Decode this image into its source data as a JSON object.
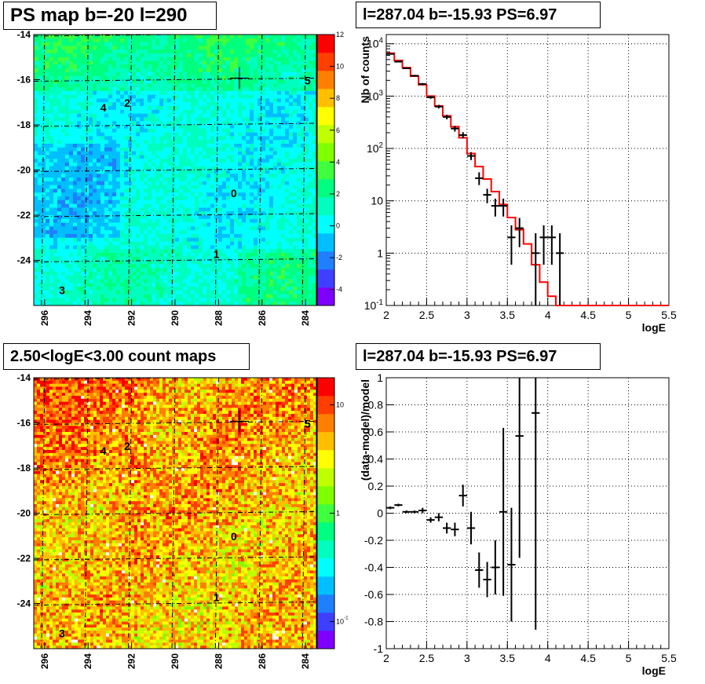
{
  "panels": {
    "ps_map_title": "PS map b=-20 l=290",
    "count_map_title": "2.50<logE<3.00 count maps",
    "spectrum_title": "l=287.04 b=-15.93 PS=6.97",
    "residual_title": "l=287.04 b=-15.93 PS=6.97"
  },
  "chart_data": [
    {
      "type": "heatmap",
      "name": "ps-map",
      "title": "PS map b=-20 l=290",
      "xlim": [
        296.5,
        283.5
      ],
      "ylim": [
        -14,
        -26
      ],
      "x_ticks": [
        "296",
        "294",
        "292",
        "290",
        "288",
        "286",
        "284"
      ],
      "y_ticks": [
        "-14",
        "-16",
        "-18",
        "-20",
        "-22",
        "-24"
      ],
      "colorbar_ticks": [
        "-4",
        "-2",
        "0",
        "2",
        "4",
        "6",
        "8",
        "10",
        "12"
      ],
      "colorbar_range": [
        -5,
        12
      ],
      "colors": [
        "#7f00ff",
        "#3f3fff",
        "#1f7fff",
        "#00bfff",
        "#00ffff",
        "#00ffbf",
        "#00ff7f",
        "#3fff3f",
        "#7fff00",
        "#bfff00",
        "#ffff00",
        "#ffbf00",
        "#ff7f00",
        "#ff3f00",
        "#ff0000"
      ],
      "sources": [
        {
          "label": "0",
          "l": 287.3,
          "b": -21.2
        },
        {
          "label": "1",
          "l": 288.1,
          "b": -23.9
        },
        {
          "label": "2",
          "l": 292.2,
          "b": -17.2
        },
        {
          "label": "3",
          "l": 295.2,
          "b": -25.5
        },
        {
          "label": "4",
          "l": 293.3,
          "b": -17.4
        },
        {
          "label": "5",
          "l": 283.9,
          "b": -16.2
        }
      ],
      "marker": {
        "l": 287.04,
        "b": -15.93
      }
    },
    {
      "type": "heatmap",
      "name": "count-map",
      "title": "2.50<logE<3.00 count maps",
      "xlim": [
        296.5,
        283.5
      ],
      "ylim": [
        -14,
        -26
      ],
      "x_ticks": [
        "296",
        "294",
        "292",
        "290",
        "288",
        "286",
        "284"
      ],
      "y_ticks": [
        "-14",
        "-16",
        "-18",
        "-20",
        "-22",
        "-24"
      ],
      "colorbar_ticks": [
        "10",
        "1",
        "10^-1"
      ],
      "colorbar_scale": "log",
      "colors": [
        "#7f00ff",
        "#3f3fff",
        "#1f7fff",
        "#00bfff",
        "#00ffff",
        "#00ffbf",
        "#00ff7f",
        "#3fff3f",
        "#7fff00",
        "#bfff00",
        "#ffff00",
        "#ffbf00",
        "#ff7f00",
        "#ff3f00",
        "#ff0000"
      ],
      "sources": [
        {
          "label": "0",
          "l": 287.3,
          "b": -21.2
        },
        {
          "label": "1",
          "l": 288.1,
          "b": -23.9
        },
        {
          "label": "2",
          "l": 292.2,
          "b": -17.2
        },
        {
          "label": "3",
          "l": 295.2,
          "b": -25.5
        },
        {
          "label": "4",
          "l": 293.3,
          "b": -17.4
        },
        {
          "label": "5",
          "l": 283.9,
          "b": -16.2
        }
      ],
      "marker": {
        "l": 287.04,
        "b": -15.93
      }
    },
    {
      "type": "line",
      "name": "spectrum",
      "title": "l=287.04 b=-15.93 PS=6.97",
      "xlabel": "logE",
      "ylabel": "Nb of counts",
      "xlim": [
        2,
        5.5
      ],
      "ylim": [
        0.1,
        15000
      ],
      "yscale": "log",
      "grid": true,
      "x_ticks": [
        "2",
        "2.5",
        "3",
        "3.5",
        "4",
        "4.5",
        "5",
        "5.5"
      ],
      "y_ticks": [
        "10^-1",
        "1",
        "10",
        "10^2",
        "10^3",
        "10^4"
      ],
      "model": [
        {
          "x0": 2.0,
          "x1": 2.1,
          "y": 6600
        },
        {
          "x0": 2.1,
          "x1": 2.2,
          "y": 4800
        },
        {
          "x0": 2.2,
          "x1": 2.3,
          "y": 3500
        },
        {
          "x0": 2.3,
          "x1": 2.4,
          "y": 2400
        },
        {
          "x0": 2.4,
          "x1": 2.5,
          "y": 1650
        },
        {
          "x0": 2.5,
          "x1": 2.6,
          "y": 1000
        },
        {
          "x0": 2.6,
          "x1": 2.7,
          "y": 650
        },
        {
          "x0": 2.7,
          "x1": 2.8,
          "y": 420
        },
        {
          "x0": 2.8,
          "x1": 2.9,
          "y": 260
        },
        {
          "x0": 2.9,
          "x1": 3.0,
          "y": 160
        },
        {
          "x0": 3.0,
          "x1": 3.1,
          "y": 80
        },
        {
          "x0": 3.1,
          "x1": 3.2,
          "y": 45
        },
        {
          "x0": 3.2,
          "x1": 3.3,
          "y": 26
        },
        {
          "x0": 3.3,
          "x1": 3.4,
          "y": 15
        },
        {
          "x0": 3.4,
          "x1": 3.5,
          "y": 8.5
        },
        {
          "x0": 3.5,
          "x1": 3.6,
          "y": 4.8
        },
        {
          "x0": 3.6,
          "x1": 3.7,
          "y": 2.8
        },
        {
          "x0": 3.7,
          "x1": 3.8,
          "y": 1.5
        },
        {
          "x0": 3.8,
          "x1": 3.9,
          "y": 0.6
        },
        {
          "x0": 3.9,
          "x1": 4.0,
          "y": 0.28
        },
        {
          "x0": 4.0,
          "x1": 4.1,
          "y": 0.15
        },
        {
          "x0": 4.1,
          "x1": 5.5,
          "y": 0.1
        }
      ],
      "data_points": [
        {
          "x": 2.05,
          "y": 6400,
          "lo": 6250,
          "hi": 6560
        },
        {
          "x": 2.15,
          "y": 4550,
          "lo": 4420,
          "hi": 4690
        },
        {
          "x": 2.25,
          "y": 3400,
          "lo": 3290,
          "hi": 3520
        },
        {
          "x": 2.35,
          "y": 2450,
          "lo": 2350,
          "hi": 2550
        },
        {
          "x": 2.45,
          "y": 1700,
          "lo": 1620,
          "hi": 1780
        },
        {
          "x": 2.55,
          "y": 950,
          "lo": 890,
          "hi": 1010
        },
        {
          "x": 2.65,
          "y": 630,
          "lo": 580,
          "hi": 680
        },
        {
          "x": 2.75,
          "y": 400,
          "lo": 360,
          "hi": 440
        },
        {
          "x": 2.85,
          "y": 240,
          "lo": 210,
          "hi": 270
        },
        {
          "x": 2.95,
          "y": 180,
          "lo": 155,
          "hi": 205
        },
        {
          "x": 3.05,
          "y": 72,
          "lo": 60,
          "hi": 85
        },
        {
          "x": 3.15,
          "y": 27,
          "lo": 20,
          "hi": 35
        },
        {
          "x": 3.25,
          "y": 13,
          "lo": 9,
          "hi": 17
        },
        {
          "x": 3.35,
          "y": 8,
          "lo": 5,
          "hi": 11
        },
        {
          "x": 3.45,
          "y": 8,
          "lo": 5,
          "hi": 11
        },
        {
          "x": 3.55,
          "y": 2,
          "lo": 0.6,
          "hi": 3.4
        },
        {
          "x": 3.65,
          "y": 3,
          "lo": 1.3,
          "hi": 4.7
        },
        {
          "x": 3.85,
          "y": 1,
          "lo": 0.1,
          "hi": 2.4
        },
        {
          "x": 3.95,
          "y": 2,
          "lo": 0.6,
          "hi": 3.4
        },
        {
          "x": 4.05,
          "y": 2,
          "lo": 0.6,
          "hi": 3.4
        },
        {
          "x": 4.15,
          "y": 1,
          "lo": 0.1,
          "hi": 2.4
        }
      ]
    },
    {
      "type": "scatter",
      "name": "residuals",
      "title": "l=287.04 b=-15.93 PS=6.97",
      "xlabel": "logE",
      "ylabel": "(data-model)/model",
      "xlim": [
        2,
        5.5
      ],
      "ylim": [
        -1,
        1
      ],
      "grid": true,
      "x_ticks": [
        "2",
        "2.5",
        "3",
        "3.5",
        "4",
        "4.5",
        "5",
        "5.5"
      ],
      "y_ticks": [
        "-1",
        "-0.8",
        "-0.6",
        "-0.4",
        "-0.2",
        "0",
        "0.2",
        "0.4",
        "0.6",
        "0.8",
        "1"
      ],
      "data_points": [
        {
          "x": 2.05,
          "y": 0.04,
          "err": 0.01
        },
        {
          "x": 2.15,
          "y": 0.06,
          "err": 0.01
        },
        {
          "x": 2.25,
          "y": 0.01,
          "err": 0.01
        },
        {
          "x": 2.35,
          "y": 0.01,
          "err": 0.01
        },
        {
          "x": 2.45,
          "y": 0.02,
          "err": 0.02
        },
        {
          "x": 2.55,
          "y": -0.05,
          "err": 0.02
        },
        {
          "x": 2.65,
          "y": -0.03,
          "err": 0.03
        },
        {
          "x": 2.75,
          "y": -0.11,
          "err": 0.04
        },
        {
          "x": 2.85,
          "y": -0.12,
          "err": 0.05
        },
        {
          "x": 2.95,
          "y": 0.13,
          "err": 0.08
        },
        {
          "x": 3.05,
          "y": -0.11,
          "err": 0.12
        },
        {
          "x": 3.15,
          "y": -0.42,
          "err": 0.13
        },
        {
          "x": 3.25,
          "y": -0.49,
          "err": 0.13
        },
        {
          "x": 3.35,
          "y": -0.4,
          "err": 0.2
        },
        {
          "x": 3.45,
          "y": 0.01,
          "err": 0.62
        },
        {
          "x": 3.55,
          "y": -0.38,
          "err": 0.42
        },
        {
          "x": 3.65,
          "y": 0.57,
          "err": 0.9
        },
        {
          "x": 3.85,
          "y": 0.74,
          "err": 1.6
        }
      ]
    }
  ]
}
